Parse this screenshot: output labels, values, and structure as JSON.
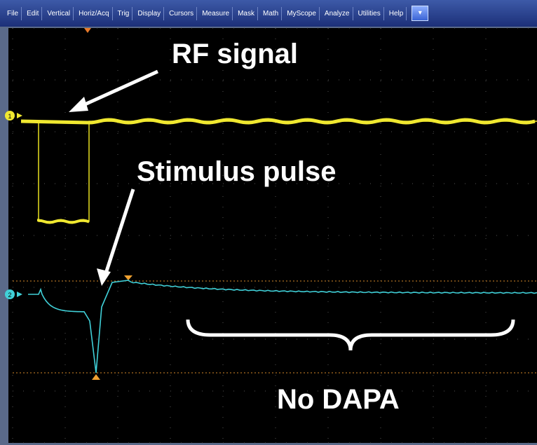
{
  "menu": [
    "File",
    "Edit",
    "Vertical",
    "Horiz/Acq",
    "Trig",
    "Display",
    "Cursors",
    "Measure",
    "Mask",
    "Math",
    "MyScope",
    "Analyze",
    "Utilities",
    "Help"
  ],
  "channels": [
    "1",
    "2"
  ],
  "annotations": {
    "rf": "RF signal",
    "stimulus": "Stimulus pulse",
    "result": "No DAPA"
  }
}
